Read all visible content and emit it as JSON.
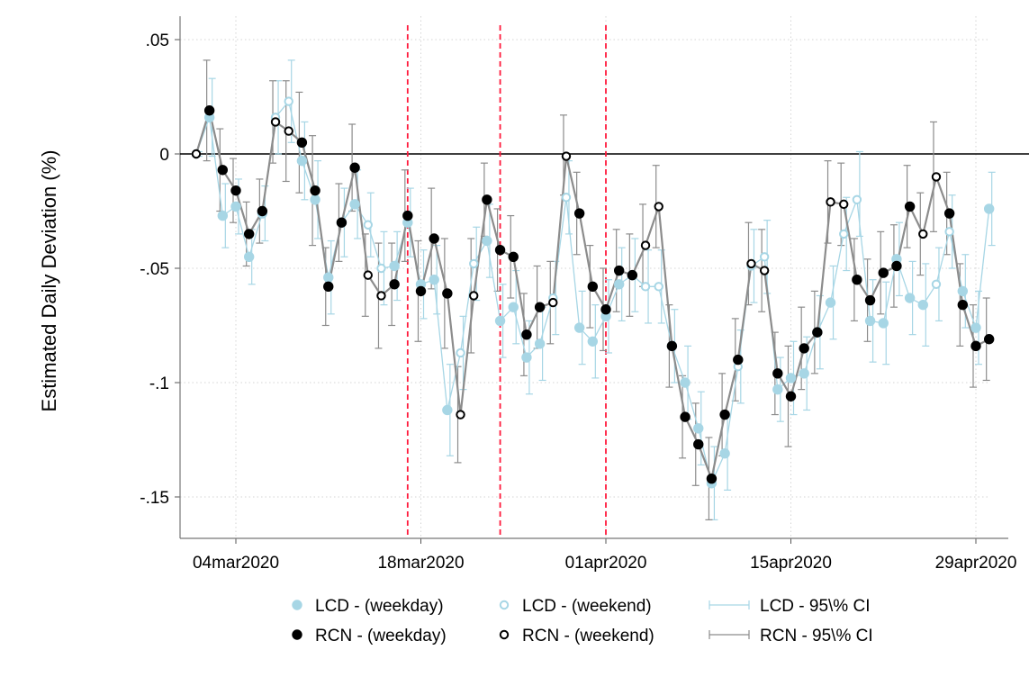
{
  "chart_data": {
    "type": "scatter",
    "title": "",
    "xlabel": "",
    "ylabel": "Estimated Daily Deviation (%)",
    "ylim": [
      -0.168,
      0.05
    ],
    "xlim": [
      "2020-03-01",
      "2020-05-01"
    ],
    "yticks": [
      {
        "value": 0.05,
        "label": ".05"
      },
      {
        "value": 0,
        "label": "0"
      },
      {
        "value": -0.05,
        "label": "-.05"
      },
      {
        "value": -0.1,
        "label": "-.1"
      },
      {
        "value": -0.15,
        "label": "-.15"
      }
    ],
    "xticks": [
      {
        "date": "2020-03-04",
        "label": "04mar2020"
      },
      {
        "date": "2020-03-18",
        "label": "18mar2020"
      },
      {
        "date": "2020-04-01",
        "label": "01apr2020"
      },
      {
        "date": "2020-04-15",
        "label": "15apr2020"
      },
      {
        "date": "2020-04-29",
        "label": "29apr2020"
      }
    ],
    "vlines": [
      "2020-03-17",
      "2020-03-24",
      "2020-04-01"
    ],
    "grid": true,
    "legend_position": "bottom",
    "legend": [
      {
        "label": "LCD - (weekday)",
        "symbol": "filled",
        "color": "#a7d6e5"
      },
      {
        "label": "LCD - (weekend)",
        "symbol": "hollow",
        "color": "#a7d6e5"
      },
      {
        "label": "LCD - 95\\% CI",
        "symbol": "ci",
        "color": "#a7d6e5"
      },
      {
        "label": "RCN - (weekday)",
        "symbol": "filled",
        "color": "#000000"
      },
      {
        "label": "RCN - (weekend)",
        "symbol": "hollow",
        "color": "#000000"
      },
      {
        "label": "RCN - 95\\% CI",
        "symbol": "ci",
        "color": "#8c8c8c"
      }
    ],
    "colors": {
      "lcd": "#a7d6e5",
      "rcn": "#000000",
      "rcn_line": "#8c8c8c",
      "vline": "#ff1a3c"
    },
    "series": [
      {
        "name": "LCD",
        "points": [
          [
            "2020-03-01",
            0.0,
            -0.001,
            0.001,
            "we"
          ],
          [
            "2020-03-02",
            0.016,
            -0.001,
            0.033,
            "wd"
          ],
          [
            "2020-03-03",
            -0.027,
            -0.041,
            -0.013,
            "wd"
          ],
          [
            "2020-03-04",
            -0.023,
            -0.035,
            -0.011,
            "wd"
          ],
          [
            "2020-03-05",
            -0.045,
            -0.057,
            -0.033,
            "wd"
          ],
          [
            "2020-03-06",
            -0.026,
            -0.038,
            -0.014,
            "wd"
          ],
          [
            "2020-03-07",
            0.016,
            0.0,
            0.032,
            "we"
          ],
          [
            "2020-03-08",
            0.023,
            0.005,
            0.041,
            "we"
          ],
          [
            "2020-03-09",
            -0.003,
            -0.02,
            0.014,
            "wd"
          ],
          [
            "2020-03-10",
            -0.02,
            -0.037,
            -0.003,
            "wd"
          ],
          [
            "2020-03-11",
            -0.054,
            -0.07,
            -0.038,
            "wd"
          ],
          [
            "2020-03-12",
            -0.03,
            -0.045,
            -0.015,
            "wd"
          ],
          [
            "2020-03-13",
            -0.022,
            -0.037,
            -0.007,
            "wd"
          ],
          [
            "2020-03-14",
            -0.031,
            -0.045,
            -0.017,
            "we"
          ],
          [
            "2020-03-15",
            -0.05,
            -0.066,
            -0.034,
            "we"
          ],
          [
            "2020-03-16",
            -0.049,
            -0.064,
            -0.034,
            "wd"
          ],
          [
            "2020-03-17",
            -0.03,
            -0.045,
            -0.015,
            "wd"
          ],
          [
            "2020-03-18",
            -0.057,
            -0.072,
            -0.042,
            "wd"
          ],
          [
            "2020-03-19",
            -0.055,
            -0.07,
            -0.04,
            "wd"
          ],
          [
            "2020-03-20",
            -0.112,
            -0.132,
            -0.092,
            "wd"
          ],
          [
            "2020-03-21",
            -0.087,
            -0.103,
            -0.071,
            "we"
          ],
          [
            "2020-03-22",
            -0.048,
            -0.064,
            -0.032,
            "we"
          ],
          [
            "2020-03-23",
            -0.038,
            -0.054,
            -0.022,
            "wd"
          ],
          [
            "2020-03-24",
            -0.073,
            -0.089,
            -0.057,
            "wd"
          ],
          [
            "2020-03-25",
            -0.067,
            -0.083,
            -0.051,
            "wd"
          ],
          [
            "2020-03-26",
            -0.089,
            -0.105,
            -0.073,
            "wd"
          ],
          [
            "2020-03-27",
            -0.083,
            -0.099,
            -0.067,
            "wd"
          ],
          [
            "2020-03-28",
            -0.063,
            -0.079,
            -0.047,
            "we"
          ],
          [
            "2020-03-29",
            -0.019,
            -0.035,
            -0.003,
            "we"
          ],
          [
            "2020-03-30",
            -0.076,
            -0.092,
            -0.06,
            "wd"
          ],
          [
            "2020-03-31",
            -0.082,
            -0.098,
            -0.066,
            "wd"
          ],
          [
            "2020-04-01",
            -0.071,
            -0.087,
            -0.055,
            "wd"
          ],
          [
            "2020-04-02",
            -0.057,
            -0.073,
            -0.041,
            "wd"
          ],
          [
            "2020-04-03",
            -0.053,
            -0.069,
            -0.037,
            "wd"
          ],
          [
            "2020-04-04",
            -0.058,
            -0.074,
            -0.042,
            "we"
          ],
          [
            "2020-04-05",
            -0.058,
            -0.074,
            -0.042,
            "we"
          ],
          [
            "2020-04-06",
            -0.084,
            -0.1,
            -0.068,
            "wd"
          ],
          [
            "2020-04-07",
            -0.1,
            -0.116,
            -0.084,
            "wd"
          ],
          [
            "2020-04-08",
            -0.12,
            -0.136,
            -0.104,
            "wd"
          ],
          [
            "2020-04-09",
            -0.144,
            -0.16,
            -0.128,
            "wd"
          ],
          [
            "2020-04-10",
            -0.131,
            -0.147,
            -0.115,
            "wd"
          ],
          [
            "2020-04-11",
            -0.093,
            -0.109,
            -0.077,
            "we"
          ],
          [
            "2020-04-12",
            -0.049,
            -0.065,
            -0.033,
            "we"
          ],
          [
            "2020-04-13",
            -0.045,
            -0.061,
            -0.029,
            "we"
          ],
          [
            "2020-04-14",
            -0.103,
            -0.117,
            -0.089,
            "wd"
          ],
          [
            "2020-04-15",
            -0.098,
            -0.114,
            -0.082,
            "wd"
          ],
          [
            "2020-04-16",
            -0.096,
            -0.112,
            -0.08,
            "wd"
          ],
          [
            "2020-04-17",
            -0.078,
            -0.094,
            -0.062,
            "wd"
          ],
          [
            "2020-04-18",
            -0.065,
            -0.081,
            -0.049,
            "wd"
          ],
          [
            "2020-04-19",
            -0.035,
            -0.051,
            -0.019,
            "we"
          ],
          [
            "2020-04-20",
            -0.02,
            -0.036,
            0.001,
            "we"
          ],
          [
            "2020-04-21",
            -0.073,
            -0.091,
            -0.055,
            "wd"
          ],
          [
            "2020-04-22",
            -0.074,
            -0.092,
            -0.056,
            "wd"
          ],
          [
            "2020-04-23",
            -0.046,
            -0.062,
            -0.03,
            "wd"
          ],
          [
            "2020-04-24",
            -0.063,
            -0.079,
            -0.047,
            "wd"
          ],
          [
            "2020-04-25",
            -0.066,
            -0.084,
            -0.048,
            "wd"
          ],
          [
            "2020-04-26",
            -0.057,
            -0.073,
            -0.041,
            "we"
          ],
          [
            "2020-04-27",
            -0.034,
            -0.05,
            -0.018,
            "we"
          ],
          [
            "2020-04-28",
            -0.06,
            -0.076,
            -0.044,
            "wd"
          ],
          [
            "2020-04-29",
            -0.076,
            -0.092,
            -0.06,
            "wd"
          ],
          [
            "2020-04-30",
            -0.024,
            -0.04,
            -0.008,
            "wd"
          ]
        ]
      },
      {
        "name": "RCN",
        "points": [
          [
            "2020-03-01",
            0.0,
            0.0,
            0.0,
            "we"
          ],
          [
            "2020-03-02",
            0.019,
            -0.003,
            0.041,
            "wd"
          ],
          [
            "2020-03-03",
            -0.007,
            -0.025,
            0.011,
            "wd"
          ],
          [
            "2020-03-04",
            -0.016,
            -0.03,
            -0.002,
            "wd"
          ],
          [
            "2020-03-05",
            -0.035,
            -0.049,
            -0.021,
            "wd"
          ],
          [
            "2020-03-06",
            -0.025,
            -0.039,
            -0.011,
            "wd"
          ],
          [
            "2020-03-07",
            0.014,
            -0.004,
            0.032,
            "we"
          ],
          [
            "2020-03-08",
            0.01,
            -0.012,
            0.032,
            "we"
          ],
          [
            "2020-03-09",
            0.005,
            -0.017,
            0.027,
            "wd"
          ],
          [
            "2020-03-10",
            -0.016,
            -0.04,
            0.008,
            "wd"
          ],
          [
            "2020-03-11",
            -0.058,
            -0.075,
            -0.041,
            "wd"
          ],
          [
            "2020-03-12",
            -0.03,
            -0.047,
            -0.013,
            "wd"
          ],
          [
            "2020-03-13",
            -0.006,
            -0.025,
            0.013,
            "wd"
          ],
          [
            "2020-03-14",
            -0.053,
            -0.071,
            -0.035,
            "we"
          ],
          [
            "2020-03-15",
            -0.062,
            -0.085,
            -0.039,
            "we"
          ],
          [
            "2020-03-16",
            -0.057,
            -0.075,
            -0.039,
            "wd"
          ],
          [
            "2020-03-17",
            -0.027,
            -0.047,
            -0.007,
            "wd"
          ],
          [
            "2020-03-18",
            -0.06,
            -0.082,
            -0.038,
            "wd"
          ],
          [
            "2020-03-19",
            -0.037,
            -0.059,
            -0.015,
            "wd"
          ],
          [
            "2020-03-20",
            -0.061,
            -0.085,
            -0.037,
            "wd"
          ],
          [
            "2020-03-21",
            -0.114,
            -0.135,
            -0.093,
            "we"
          ],
          [
            "2020-03-22",
            -0.062,
            -0.087,
            -0.037,
            "we"
          ],
          [
            "2020-03-23",
            -0.02,
            -0.036,
            -0.004,
            "wd"
          ],
          [
            "2020-03-24",
            -0.042,
            -0.06,
            -0.024,
            "wd"
          ],
          [
            "2020-03-25",
            -0.045,
            -0.063,
            -0.027,
            "wd"
          ],
          [
            "2020-03-26",
            -0.079,
            -0.097,
            -0.061,
            "wd"
          ],
          [
            "2020-03-27",
            -0.067,
            -0.085,
            -0.049,
            "wd"
          ],
          [
            "2020-03-28",
            -0.065,
            -0.083,
            -0.047,
            "we"
          ],
          [
            "2020-03-29",
            -0.001,
            -0.018,
            0.017,
            "we"
          ],
          [
            "2020-03-30",
            -0.026,
            -0.044,
            -0.008,
            "wd"
          ],
          [
            "2020-03-31",
            -0.058,
            -0.076,
            -0.04,
            "wd"
          ],
          [
            "2020-04-01",
            -0.068,
            -0.086,
            -0.05,
            "wd"
          ],
          [
            "2020-04-02",
            -0.051,
            -0.069,
            -0.033,
            "wd"
          ],
          [
            "2020-04-03",
            -0.053,
            -0.071,
            -0.035,
            "wd"
          ],
          [
            "2020-04-04",
            -0.04,
            -0.058,
            -0.022,
            "we"
          ],
          [
            "2020-04-05",
            -0.023,
            -0.041,
            -0.005,
            "we"
          ],
          [
            "2020-04-06",
            -0.084,
            -0.102,
            -0.066,
            "wd"
          ],
          [
            "2020-04-07",
            -0.115,
            -0.133,
            -0.097,
            "wd"
          ],
          [
            "2020-04-08",
            -0.127,
            -0.145,
            -0.109,
            "wd"
          ],
          [
            "2020-04-09",
            -0.142,
            -0.16,
            -0.124,
            "wd"
          ],
          [
            "2020-04-10",
            -0.114,
            -0.132,
            -0.096,
            "wd"
          ],
          [
            "2020-04-11",
            -0.09,
            -0.108,
            -0.072,
            "wd"
          ],
          [
            "2020-04-12",
            -0.048,
            -0.066,
            -0.03,
            "we"
          ],
          [
            "2020-04-13",
            -0.051,
            -0.069,
            -0.033,
            "we"
          ],
          [
            "2020-04-14",
            -0.096,
            -0.114,
            -0.078,
            "wd"
          ],
          [
            "2020-04-15",
            -0.106,
            -0.128,
            -0.084,
            "wd"
          ],
          [
            "2020-04-16",
            -0.085,
            -0.103,
            -0.067,
            "wd"
          ],
          [
            "2020-04-17",
            -0.078,
            -0.096,
            -0.06,
            "wd"
          ],
          [
            "2020-04-18",
            -0.021,
            -0.039,
            -0.003,
            "we"
          ],
          [
            "2020-04-19",
            -0.022,
            -0.04,
            -0.004,
            "we"
          ],
          [
            "2020-04-20",
            -0.055,
            -0.073,
            -0.037,
            "wd"
          ],
          [
            "2020-04-21",
            -0.064,
            -0.082,
            -0.046,
            "wd"
          ],
          [
            "2020-04-22",
            -0.052,
            -0.07,
            -0.034,
            "wd"
          ],
          [
            "2020-04-23",
            -0.049,
            -0.067,
            -0.031,
            "wd"
          ],
          [
            "2020-04-24",
            -0.023,
            -0.041,
            -0.005,
            "wd"
          ],
          [
            "2020-04-25",
            -0.035,
            -0.053,
            -0.017,
            "we"
          ],
          [
            "2020-04-26",
            -0.01,
            -0.034,
            0.014,
            "we"
          ],
          [
            "2020-04-27",
            -0.026,
            -0.044,
            -0.008,
            "wd"
          ],
          [
            "2020-04-28",
            -0.066,
            -0.084,
            -0.048,
            "wd"
          ],
          [
            "2020-04-29",
            -0.084,
            -0.102,
            -0.066,
            "wd"
          ],
          [
            "2020-04-30",
            -0.081,
            -0.099,
            -0.063,
            "wd"
          ]
        ]
      }
    ]
  }
}
